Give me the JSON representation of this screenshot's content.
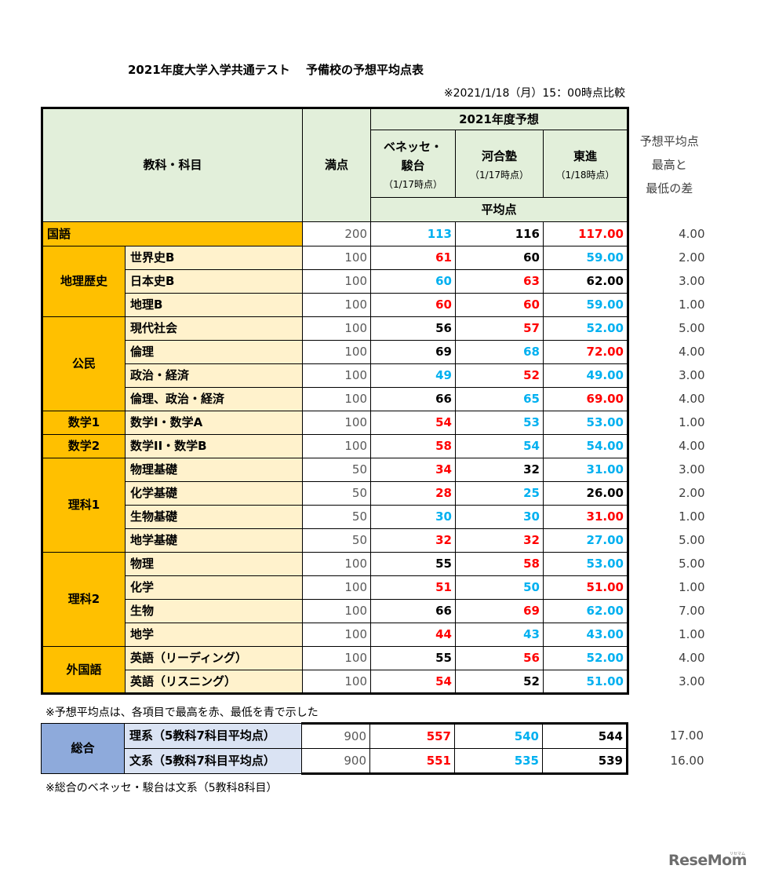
{
  "title": "2021年度大学入学共通テスト　 予備校の予想平均点表",
  "asof": "※2021/1/18（月）15：00時点比較",
  "header": {
    "subject_col": "教科・科目",
    "max_col": "満点",
    "forecast_group": "2021年度予想",
    "avg_label": "平均点",
    "diff_line1": "予想平均点",
    "diff_line2": "最高と",
    "diff_line3": "最低の差",
    "schools": [
      {
        "name1": "ベネッセ・",
        "name2": "駿台",
        "date": "（1/17時点）"
      },
      {
        "name1": "河合塾",
        "name2": "",
        "date": "（1/17時点）"
      },
      {
        "name1": "東進",
        "name2": "",
        "date": "（1/18時点）"
      }
    ]
  },
  "colors": {
    "high": "#ff0000",
    "low": "#00b0f0",
    "header_bg": "#e2efda",
    "category_bg": "#ffc000",
    "subject_bg": "#fff2cc",
    "total_cat_bg": "#8eaadb",
    "total_sub_bg": "#dae3f3"
  },
  "rows": [
    {
      "cat": "国語",
      "sub": "",
      "max": "200",
      "benesse": "113",
      "kawai": "116",
      "toshin": "117.00",
      "diff": "4.00",
      "c": [
        "low",
        "black",
        "high"
      ]
    },
    {
      "cat": "地理歴史",
      "sub": "世界史B",
      "max": "100",
      "benesse": "61",
      "kawai": "60",
      "toshin": "59.00",
      "diff": "2.00",
      "c": [
        "high",
        "black",
        "low"
      ]
    },
    {
      "cat": "",
      "sub": "日本史B",
      "max": "100",
      "benesse": "60",
      "kawai": "63",
      "toshin": "62.00",
      "diff": "3.00",
      "c": [
        "low",
        "high",
        "black"
      ]
    },
    {
      "cat": "",
      "sub": "地理B",
      "max": "100",
      "benesse": "60",
      "kawai": "60",
      "toshin": "59.00",
      "diff": "1.00",
      "c": [
        "high",
        "high",
        "low"
      ]
    },
    {
      "cat": "公民",
      "sub": "現代社会",
      "max": "100",
      "benesse": "56",
      "kawai": "57",
      "toshin": "52.00",
      "diff": "5.00",
      "c": [
        "black",
        "high",
        "low"
      ]
    },
    {
      "cat": "",
      "sub": "倫理",
      "max": "100",
      "benesse": "69",
      "kawai": "68",
      "toshin": "72.00",
      "diff": "4.00",
      "c": [
        "black",
        "low",
        "high"
      ]
    },
    {
      "cat": "",
      "sub": "政治・経済",
      "max": "100",
      "benesse": "49",
      "kawai": "52",
      "toshin": "49.00",
      "diff": "3.00",
      "c": [
        "low",
        "high",
        "low"
      ]
    },
    {
      "cat": "",
      "sub": "倫理、政治・経済",
      "max": "100",
      "benesse": "66",
      "kawai": "65",
      "toshin": "69.00",
      "diff": "4.00",
      "c": [
        "black",
        "low",
        "high"
      ]
    },
    {
      "cat": "数学1",
      "sub": "数学I・数学A",
      "max": "100",
      "benesse": "54",
      "kawai": "53",
      "toshin": "53.00",
      "diff": "1.00",
      "c": [
        "high",
        "low",
        "low"
      ]
    },
    {
      "cat": "数学2",
      "sub": "数学II・数学B",
      "max": "100",
      "benesse": "58",
      "kawai": "54",
      "toshin": "54.00",
      "diff": "4.00",
      "c": [
        "high",
        "low",
        "low"
      ]
    },
    {
      "cat": "理科1",
      "sub": "物理基礎",
      "max": "50",
      "benesse": "34",
      "kawai": "32",
      "toshin": "31.00",
      "diff": "3.00",
      "c": [
        "high",
        "black",
        "low"
      ]
    },
    {
      "cat": "",
      "sub": "化学基礎",
      "max": "50",
      "benesse": "28",
      "kawai": "25",
      "toshin": "26.00",
      "diff": "2.00",
      "c": [
        "high",
        "low",
        "black"
      ]
    },
    {
      "cat": "",
      "sub": "生物基礎",
      "max": "50",
      "benesse": "30",
      "kawai": "30",
      "toshin": "31.00",
      "diff": "1.00",
      "c": [
        "low",
        "low",
        "high"
      ]
    },
    {
      "cat": "",
      "sub": "地学基礎",
      "max": "50",
      "benesse": "32",
      "kawai": "32",
      "toshin": "27.00",
      "diff": "5.00",
      "c": [
        "high",
        "high",
        "low"
      ]
    },
    {
      "cat": "理科2",
      "sub": "物理",
      "max": "100",
      "benesse": "55",
      "kawai": "58",
      "toshin": "53.00",
      "diff": "5.00",
      "c": [
        "black",
        "high",
        "low"
      ]
    },
    {
      "cat": "",
      "sub": "化学",
      "max": "100",
      "benesse": "51",
      "kawai": "50",
      "toshin": "51.00",
      "diff": "1.00",
      "c": [
        "high",
        "low",
        "high"
      ]
    },
    {
      "cat": "",
      "sub": "生物",
      "max": "100",
      "benesse": "66",
      "kawai": "69",
      "toshin": "62.00",
      "diff": "7.00",
      "c": [
        "black",
        "high",
        "low"
      ]
    },
    {
      "cat": "",
      "sub": "地学",
      "max": "100",
      "benesse": "44",
      "kawai": "43",
      "toshin": "43.00",
      "diff": "1.00",
      "c": [
        "high",
        "low",
        "low"
      ]
    },
    {
      "cat": "外国語",
      "sub": "英語（リーディング）",
      "max": "100",
      "benesse": "55",
      "kawai": "56",
      "toshin": "52.00",
      "diff": "4.00",
      "c": [
        "black",
        "high",
        "low"
      ]
    },
    {
      "cat": "",
      "sub": "英語（リスニング）",
      "max": "100",
      "benesse": "54",
      "kawai": "52",
      "toshin": "51.00",
      "diff": "3.00",
      "c": [
        "high",
        "black",
        "low"
      ]
    }
  ],
  "note1": "※予想平均点は、各項目で最高を赤、最低を青で示した",
  "total": {
    "cat": "総合",
    "rows": [
      {
        "sub": "理系（5教科7科目平均点）",
        "max": "900",
        "benesse": "557",
        "kawai": "540",
        "toshin": "544",
        "diff": "17.00",
        "c": [
          "high",
          "low",
          "black"
        ]
      },
      {
        "sub": "文系（5教科7科目平均点）",
        "max": "900",
        "benesse": "551",
        "kawai": "535",
        "toshin": "539",
        "diff": "16.00",
        "c": [
          "high",
          "low",
          "black"
        ]
      }
    ]
  },
  "note2": "※総合のベネッセ・駿台は文系（5教科8科目）",
  "logo": "ReseMom",
  "logo_sub": "リセマム"
}
